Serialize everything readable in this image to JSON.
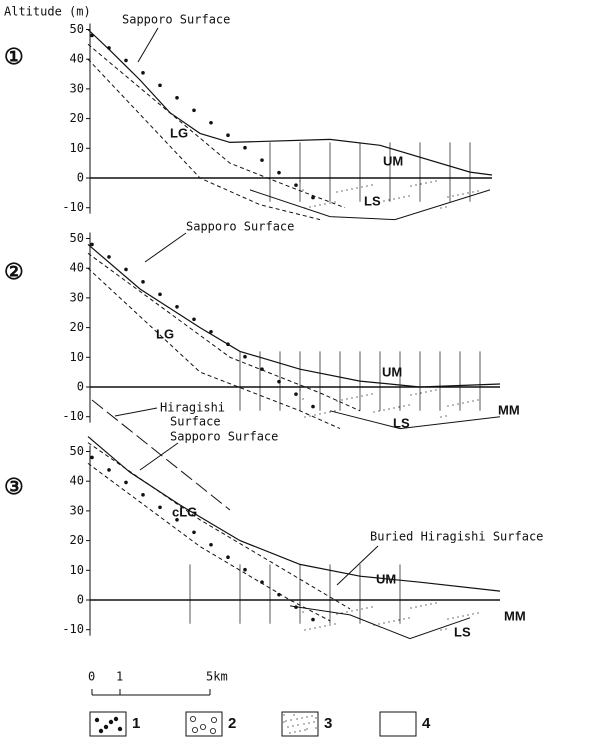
{
  "y_axis_label": "Altitude (m)",
  "panels": [
    {
      "number": "①",
      "yticks": [
        "50",
        "40",
        "30",
        "20",
        "10",
        "0",
        "-10"
      ],
      "labels": [
        "Sapporo Surface",
        "LG",
        "UM",
        "LS"
      ]
    },
    {
      "number": "②",
      "yticks": [
        "50",
        "40",
        "30",
        "20",
        "10",
        "0",
        "-10"
      ],
      "labels": [
        "Sapporo Surface",
        "LG",
        "UM",
        "MM",
        "LS"
      ],
      "hiragishi": [
        "Hiragishi",
        "Surface"
      ]
    },
    {
      "number": "③",
      "yticks": [
        "50",
        "40",
        "30",
        "20",
        "10",
        "0",
        "-10"
      ],
      "labels": [
        "Sapporo Surface",
        "cLG",
        "Buried Hiragishi Surface",
        "UM",
        "LS",
        "MM"
      ]
    }
  ],
  "scale_bar": [
    "0",
    "1",
    "5km"
  ],
  "legend": [
    "1",
    "2",
    "3",
    "4"
  ]
}
